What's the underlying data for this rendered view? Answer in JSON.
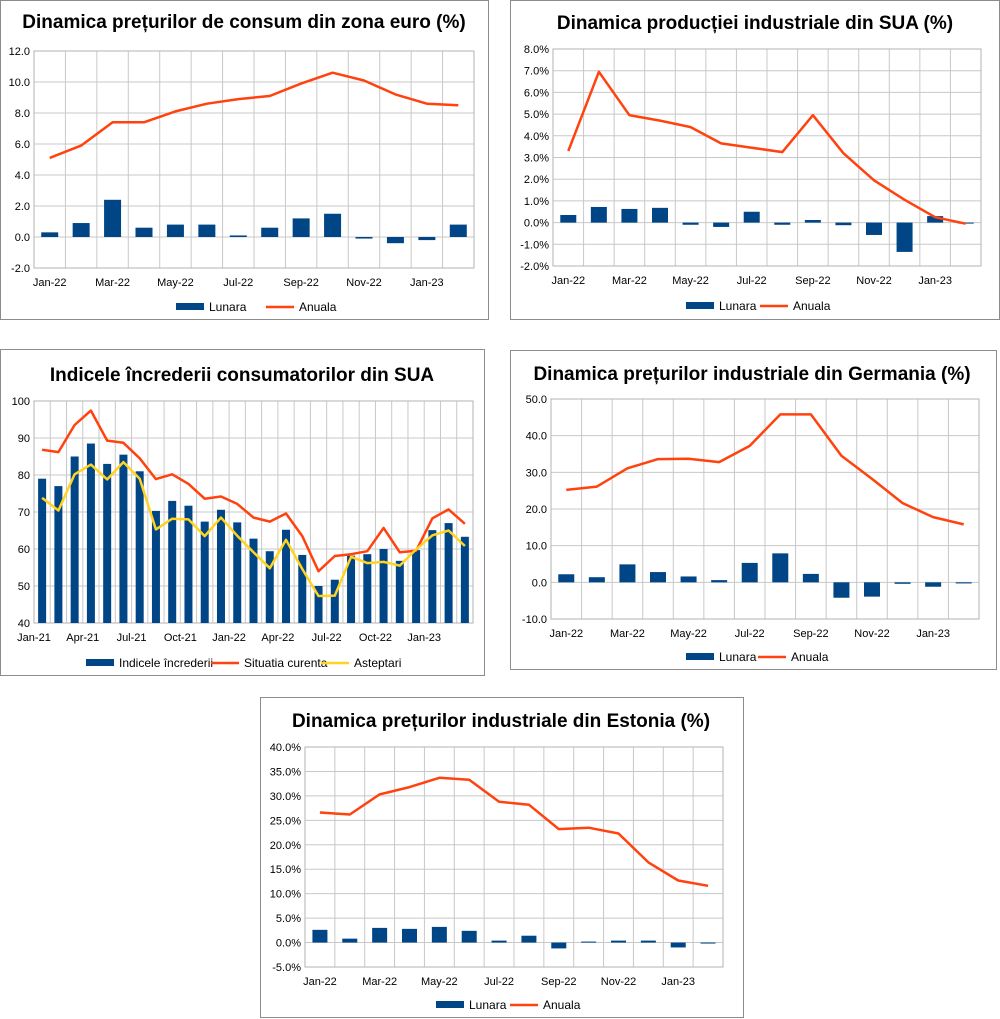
{
  "colors": {
    "bar": "#004586",
    "line": "#ff420e",
    "line2": "#ffd320"
  },
  "chart_data": [
    {
      "type": "bar+line",
      "title": "Dinamica prețurilor de consum din zona euro (%)",
      "x_labels": [
        "Jan-22",
        "Feb-22",
        "Mar-22",
        "Apr-22",
        "May-22",
        "Jun-22",
        "Jul-22",
        "Aug-22",
        "Sep-22",
        "Oct-22",
        "Nov-22",
        "Dec-22",
        "Jan-23",
        "Feb-23"
      ],
      "tick_labels": [
        "Jan-22",
        "Mar-22",
        "May-22",
        "Jul-22",
        "Sep-22",
        "Nov-22",
        "Jan-23"
      ],
      "ylim": [
        -2,
        12
      ],
      "y_ticks": [
        "-2.0",
        "0.0",
        "2.0",
        "4.0",
        "6.0",
        "8.0",
        "10.0",
        "12.0"
      ],
      "bars": {
        "name": "Lunara",
        "values": [
          0.3,
          0.9,
          2.4,
          0.6,
          0.8,
          0.8,
          0.1,
          0.6,
          1.2,
          1.5,
          -0.1,
          -0.4,
          -0.2,
          0.8
        ]
      },
      "lines": [
        {
          "name": "Anuala",
          "values": [
            5.1,
            5.9,
            7.4,
            7.4,
            8.1,
            8.6,
            8.9,
            9.1,
            9.9,
            10.6,
            10.1,
            9.2,
            8.6,
            8.5
          ]
        }
      ]
    },
    {
      "type": "bar+line",
      "title": "Dinamica producției industriale din SUA (%)",
      "x_labels": [
        "Jan-22",
        "Feb-22",
        "Mar-22",
        "Apr-22",
        "May-22",
        "Jun-22",
        "Jul-22",
        "Aug-22",
        "Sep-22",
        "Oct-22",
        "Nov-22",
        "Dec-22",
        "Jan-23",
        "Feb-23"
      ],
      "tick_labels": [
        "Jan-22",
        "Mar-22",
        "May-22",
        "Jul-22",
        "Sep-22",
        "Nov-22",
        "Jan-23"
      ],
      "ylim": [
        -2,
        8
      ],
      "y_ticks": [
        "-2.0%",
        "-1.0%",
        "0.0%",
        "1.0%",
        "2.0%",
        "3.0%",
        "4.0%",
        "5.0%",
        "6.0%",
        "7.0%",
        "8.0%"
      ],
      "bars": {
        "name": "Lunara",
        "values": [
          0.35,
          0.72,
          0.63,
          0.68,
          -0.1,
          -0.2,
          0.5,
          -0.1,
          0.12,
          -0.12,
          -0.57,
          -1.35,
          0.3,
          0.0
        ]
      },
      "lines": [
        {
          "name": "Anuala",
          "values": [
            3.3,
            6.95,
            4.95,
            4.7,
            4.4,
            3.65,
            3.45,
            3.25,
            4.95,
            3.2,
            1.95,
            1.05,
            0.25,
            -0.05
          ]
        }
      ]
    },
    {
      "type": "bar+line",
      "title": "Indicele încrederii consumatorilor din SUA",
      "x_labels": [
        "Jan-21",
        "Feb-21",
        "Mar-21",
        "Apr-21",
        "May-21",
        "Jun-21",
        "Jul-21",
        "Aug-21",
        "Sep-21",
        "Oct-21",
        "Nov-21",
        "Dec-21",
        "Jan-22",
        "Feb-22",
        "Mar-22",
        "Apr-22",
        "May-22",
        "Jun-22",
        "Jul-22",
        "Aug-22",
        "Sep-22",
        "Oct-22",
        "Nov-22",
        "Dec-22",
        "Jan-23",
        "Feb-23",
        "Mar-23"
      ],
      "tick_labels": [
        "Jan-21",
        "Apr-21",
        "Jul-21",
        "Oct-21",
        "Jan-22",
        "Apr-22",
        "Jul-22",
        "Oct-22",
        "Jan-23"
      ],
      "ylim": [
        40,
        100
      ],
      "y_ticks": [
        "40",
        "50",
        "60",
        "70",
        "80",
        "90",
        "100"
      ],
      "bars": {
        "name": "Indicele încrederii",
        "values": [
          79,
          77,
          85,
          88.5,
          83,
          85.5,
          81,
          70.3,
          73,
          71.7,
          67.4,
          70.6,
          67.2,
          62.8,
          59.4,
          65.2,
          58.4,
          50,
          51.7,
          58.2,
          58.6,
          60,
          56.8,
          59.7,
          65.1,
          67,
          63.3
        ]
      },
      "lines": [
        {
          "name": "Situatia curenta",
          "values": [
            86.8,
            86.2,
            93.5,
            97.4,
            89.3,
            88.7,
            84.5,
            78.9,
            80.2,
            77.6,
            73.6,
            74.2,
            72.2,
            68.5,
            67.4,
            69.6,
            63.5,
            54,
            58.1,
            58.6,
            59.4,
            65.7,
            59.1,
            59.5,
            68.3,
            70.7,
            66.8
          ]
        },
        {
          "name": "Asteptari",
          "values": [
            73.8,
            70.4,
            80.2,
            82.8,
            78.8,
            83.5,
            79,
            65.3,
            68.2,
            68,
            63.5,
            68.5,
            63.6,
            59.1,
            54.8,
            62.5,
            54.6,
            47.3,
            47.4,
            57.9,
            56.2,
            56.5,
            55.5,
            59.9,
            63.7,
            65,
            60.8
          ]
        }
      ]
    },
    {
      "type": "bar+line",
      "title": "Dinamica prețurilor industriale din Germania (%)",
      "x_labels": [
        "Jan-22",
        "Feb-22",
        "Mar-22",
        "Apr-22",
        "May-22",
        "Jun-22",
        "Jul-22",
        "Aug-22",
        "Sep-22",
        "Oct-22",
        "Nov-22",
        "Dec-22",
        "Jan-23",
        "Feb-23"
      ],
      "tick_labels": [
        "Jan-22",
        "Mar-22",
        "May-22",
        "Jul-22",
        "Sep-22",
        "Nov-22",
        "Jan-23"
      ],
      "ylim": [
        -10,
        50
      ],
      "y_ticks": [
        "-10.0",
        "0.0",
        "10.0",
        "20.0",
        "30.0",
        "40.0",
        "50.0"
      ],
      "bars": {
        "name": "Lunara",
        "values": [
          2.2,
          1.4,
          4.9,
          2.8,
          1.6,
          0.6,
          5.3,
          7.9,
          2.3,
          -4.2,
          -3.9,
          -0.4,
          -1.2,
          -0.3
        ]
      },
      "lines": [
        {
          "name": "Anuala",
          "values": [
            25.2,
            26.1,
            31.1,
            33.6,
            33.7,
            32.8,
            37.2,
            45.8,
            45.8,
            34.5,
            28.2,
            21.6,
            17.8,
            15.8
          ]
        }
      ]
    },
    {
      "type": "bar+line",
      "title": "Dinamica prețurilor industriale din Estonia (%)",
      "x_labels": [
        "Jan-22",
        "Feb-22",
        "Mar-22",
        "Apr-22",
        "May-22",
        "Jun-22",
        "Jul-22",
        "Aug-22",
        "Sep-22",
        "Oct-22",
        "Nov-22",
        "Dec-22",
        "Jan-23",
        "Feb-23"
      ],
      "tick_labels": [
        "Jan-22",
        "Mar-22",
        "May-22",
        "Jul-22",
        "Sep-22",
        "Nov-22",
        "Jan-23"
      ],
      "ylim": [
        -5,
        40
      ],
      "y_ticks": [
        "-5.0%",
        "0.0%",
        "5.0%",
        "10.0%",
        "15.0%",
        "20.0%",
        "25.0%",
        "30.0%",
        "35.0%",
        "40.0%"
      ],
      "bars": {
        "name": "Lunara",
        "values": [
          2.6,
          0.8,
          3.0,
          2.8,
          3.2,
          2.4,
          0.4,
          1.4,
          -1.2,
          0.2,
          0.4,
          0.4,
          -1.0,
          0.0
        ]
      },
      "lines": [
        {
          "name": "Anuala",
          "values": [
            26.6,
            26.2,
            30.3,
            31.8,
            33.7,
            33.3,
            28.8,
            28.2,
            23.2,
            23.5,
            22.3,
            16.4,
            12.7,
            11.6
          ]
        }
      ]
    }
  ]
}
